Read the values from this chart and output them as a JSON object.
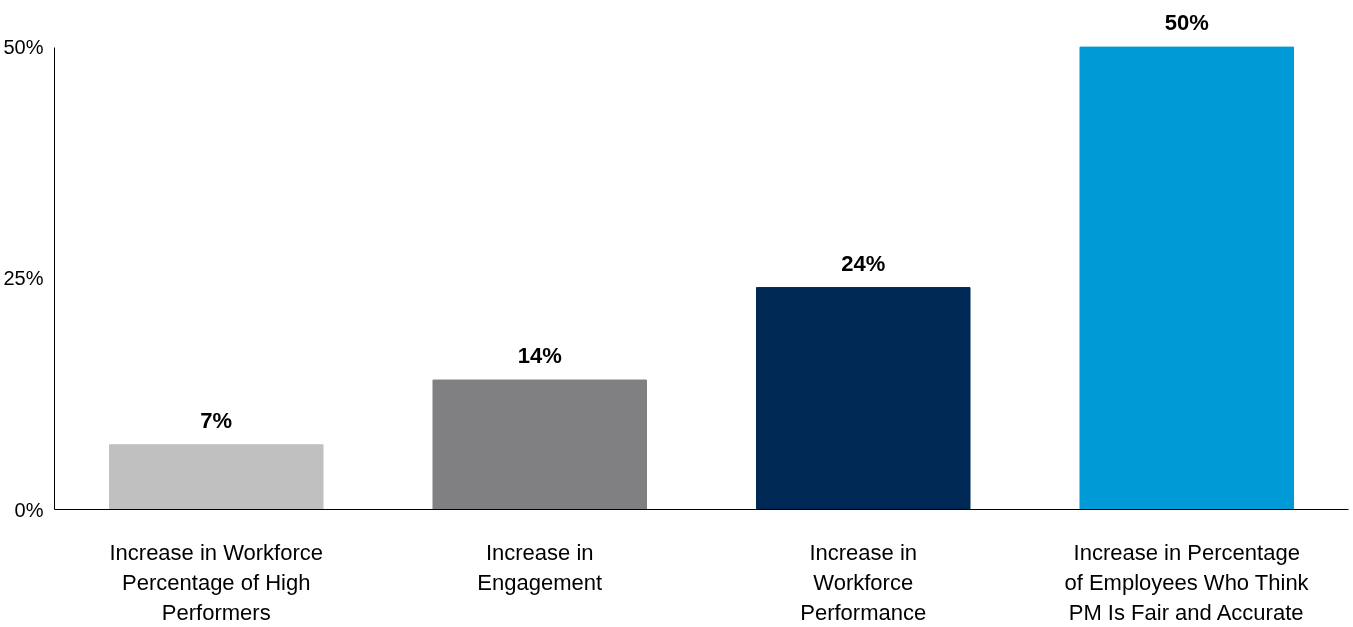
{
  "chart_data": {
    "type": "bar",
    "categories": [
      "Increase in Workforce\nPercentage of High\nPerformers",
      "Increase in\nEngagement",
      "Increase in\nWorkforce\nPerformance",
      "Increase in Percentage\nof Employees Who Think\nPM Is Fair and Accurate"
    ],
    "values": [
      7,
      14,
      24,
      50
    ],
    "colors": [
      "#bfc0bf",
      "#808083",
      "#002855",
      "#009ad6"
    ],
    "value_labels": [
      "7%",
      "14%",
      "24%",
      "50%"
    ],
    "ylim": [
      0,
      50
    ],
    "yticks": [
      {
        "value": 0,
        "label": "0%"
      },
      {
        "value": 25,
        "label": "25%"
      },
      {
        "value": 50,
        "label": "50%"
      }
    ],
    "grid": false
  }
}
